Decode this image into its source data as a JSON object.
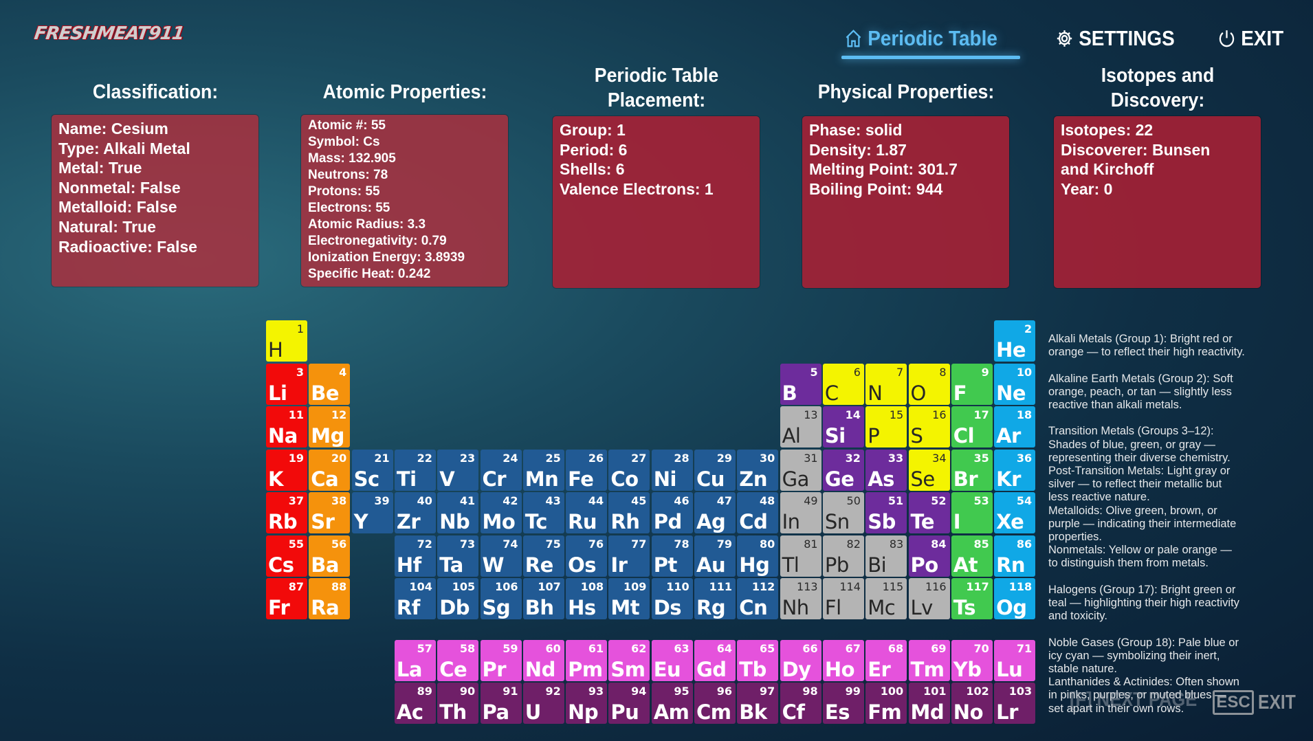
{
  "logo": {
    "text": "FRESHMEAT911"
  },
  "nav": {
    "items": [
      {
        "label": "Periodic Table",
        "icon": "home-icon",
        "active": true
      },
      {
        "label": "SETTINGS",
        "icon": "gear-icon"
      },
      {
        "label": "EXIT",
        "icon": "power-icon"
      }
    ],
    "accent": "#5cbcf2"
  },
  "panels": [
    {
      "title": "Classification:",
      "lines": [
        "Name: Cesium",
        "Type: Alkali Metal",
        "Metal: True",
        "Nonmetal: False",
        "Metalloid: False",
        "Natural: True",
        "Radioactive: False"
      ]
    },
    {
      "title": "Atomic Properties:",
      "lines": [
        "Atomic #: 55",
        "Symbol: Cs",
        "Mass: 132.905",
        "Neutrons: 78",
        "Protons: 55",
        "Electrons: 55",
        "Atomic Radius: 3.3",
        "Electronegativity: 0.79",
        "Ionization Energy: 3.8939",
        "Specific Heat: 0.242"
      ]
    },
    {
      "title": "Periodic Table\nPlacement:",
      "lines": [
        "Group: 1",
        "Period: 6",
        "Shells: 6",
        "Valence Electrons: 1"
      ]
    },
    {
      "title": "Physical Properties:",
      "lines": [
        "Phase: solid",
        "Density: 1.87",
        "Melting Point: 301.7",
        "Boiling Point: 944"
      ]
    },
    {
      "title": "Isotopes and\nDiscovery:",
      "lines": [
        "Isotopes: 22",
        "Discoverer: Bunsen",
        "and Kirchoff",
        "Year: 0"
      ]
    }
  ],
  "category_colors": {
    "alkali": "#f20a0a",
    "alkaline": "#f5920c",
    "transition": "#215a94",
    "post": "#b4b4b4",
    "metalloid": "#6d2c9c",
    "nonmetal": "#f4f400",
    "halogen": "#41c94f",
    "noble": "#10a8e6",
    "lanthanide": "#e552dc",
    "actinide": "#6f1f68"
  },
  "elements": [
    {
      "n": 1,
      "s": "H",
      "c": "nonmetal"
    },
    {
      "n": 2,
      "s": "He",
      "c": "noble"
    },
    {
      "n": 3,
      "s": "Li",
      "c": "alkali"
    },
    {
      "n": 4,
      "s": "Be",
      "c": "alkaline"
    },
    {
      "n": 5,
      "s": "B",
      "c": "metalloid"
    },
    {
      "n": 6,
      "s": "C",
      "c": "nonmetal"
    },
    {
      "n": 7,
      "s": "N",
      "c": "nonmetal"
    },
    {
      "n": 8,
      "s": "O",
      "c": "nonmetal"
    },
    {
      "n": 9,
      "s": "F",
      "c": "halogen"
    },
    {
      "n": 10,
      "s": "Ne",
      "c": "noble"
    },
    {
      "n": 11,
      "s": "Na",
      "c": "alkali"
    },
    {
      "n": 12,
      "s": "Mg",
      "c": "alkaline"
    },
    {
      "n": 13,
      "s": "Al",
      "c": "post"
    },
    {
      "n": 14,
      "s": "Si",
      "c": "metalloid"
    },
    {
      "n": 15,
      "s": "P",
      "c": "nonmetal"
    },
    {
      "n": 16,
      "s": "S",
      "c": "nonmetal"
    },
    {
      "n": 17,
      "s": "Cl",
      "c": "halogen"
    },
    {
      "n": 18,
      "s": "Ar",
      "c": "noble"
    },
    {
      "n": 19,
      "s": "K",
      "c": "alkali"
    },
    {
      "n": 20,
      "s": "Ca",
      "c": "alkaline"
    },
    {
      "n": 21,
      "s": "Sc",
      "c": "transition"
    },
    {
      "n": 22,
      "s": "Ti",
      "c": "transition"
    },
    {
      "n": 23,
      "s": "V",
      "c": "transition"
    },
    {
      "n": 24,
      "s": "Cr",
      "c": "transition"
    },
    {
      "n": 25,
      "s": "Mn",
      "c": "transition"
    },
    {
      "n": 26,
      "s": "Fe",
      "c": "transition"
    },
    {
      "n": 27,
      "s": "Co",
      "c": "transition"
    },
    {
      "n": 28,
      "s": "Ni",
      "c": "transition"
    },
    {
      "n": 29,
      "s": "Cu",
      "c": "transition"
    },
    {
      "n": 30,
      "s": "Zn",
      "c": "transition"
    },
    {
      "n": 31,
      "s": "Ga",
      "c": "post"
    },
    {
      "n": 32,
      "s": "Ge",
      "c": "metalloid"
    },
    {
      "n": 33,
      "s": "As",
      "c": "metalloid"
    },
    {
      "n": 34,
      "s": "Se",
      "c": "nonmetal"
    },
    {
      "n": 35,
      "s": "Br",
      "c": "halogen"
    },
    {
      "n": 36,
      "s": "Kr",
      "c": "noble"
    },
    {
      "n": 37,
      "s": "Rb",
      "c": "alkali"
    },
    {
      "n": 38,
      "s": "Sr",
      "c": "alkaline"
    },
    {
      "n": 39,
      "s": "Y",
      "c": "transition"
    },
    {
      "n": 40,
      "s": "Zr",
      "c": "transition"
    },
    {
      "n": 41,
      "s": "Nb",
      "c": "transition"
    },
    {
      "n": 42,
      "s": "Mo",
      "c": "transition"
    },
    {
      "n": 43,
      "s": "Tc",
      "c": "transition"
    },
    {
      "n": 44,
      "s": "Ru",
      "c": "transition"
    },
    {
      "n": 45,
      "s": "Rh",
      "c": "transition"
    },
    {
      "n": 46,
      "s": "Pd",
      "c": "transition"
    },
    {
      "n": 47,
      "s": "Ag",
      "c": "transition"
    },
    {
      "n": 48,
      "s": "Cd",
      "c": "transition"
    },
    {
      "n": 49,
      "s": "In",
      "c": "post"
    },
    {
      "n": 50,
      "s": "Sn",
      "c": "post"
    },
    {
      "n": 51,
      "s": "Sb",
      "c": "metalloid"
    },
    {
      "n": 52,
      "s": "Te",
      "c": "metalloid"
    },
    {
      "n": 53,
      "s": "I",
      "c": "halogen"
    },
    {
      "n": 54,
      "s": "Xe",
      "c": "noble"
    },
    {
      "n": 55,
      "s": "Cs",
      "c": "alkali"
    },
    {
      "n": 56,
      "s": "Ba",
      "c": "alkaline"
    },
    {
      "n": 57,
      "s": "La",
      "c": "lanthanide"
    },
    {
      "n": 58,
      "s": "Ce",
      "c": "lanthanide"
    },
    {
      "n": 59,
      "s": "Pr",
      "c": "lanthanide"
    },
    {
      "n": 60,
      "s": "Nd",
      "c": "lanthanide"
    },
    {
      "n": 61,
      "s": "Pm",
      "c": "lanthanide"
    },
    {
      "n": 62,
      "s": "Sm",
      "c": "lanthanide"
    },
    {
      "n": 63,
      "s": "Eu",
      "c": "lanthanide"
    },
    {
      "n": 64,
      "s": "Gd",
      "c": "lanthanide"
    },
    {
      "n": 65,
      "s": "Tb",
      "c": "lanthanide"
    },
    {
      "n": 66,
      "s": "Dy",
      "c": "lanthanide"
    },
    {
      "n": 67,
      "s": "Ho",
      "c": "lanthanide"
    },
    {
      "n": 68,
      "s": "Er",
      "c": "lanthanide"
    },
    {
      "n": 69,
      "s": "Tm",
      "c": "lanthanide"
    },
    {
      "n": 70,
      "s": "Yb",
      "c": "lanthanide"
    },
    {
      "n": 71,
      "s": "Lu",
      "c": "lanthanide"
    },
    {
      "n": 72,
      "s": "Hf",
      "c": "transition"
    },
    {
      "n": 73,
      "s": "Ta",
      "c": "transition"
    },
    {
      "n": 74,
      "s": "W",
      "c": "transition"
    },
    {
      "n": 75,
      "s": "Re",
      "c": "transition"
    },
    {
      "n": 76,
      "s": "Os",
      "c": "transition"
    },
    {
      "n": 77,
      "s": "Ir",
      "c": "transition"
    },
    {
      "n": 78,
      "s": "Pt",
      "c": "transition"
    },
    {
      "n": 79,
      "s": "Au",
      "c": "transition"
    },
    {
      "n": 80,
      "s": "Hg",
      "c": "transition"
    },
    {
      "n": 81,
      "s": "Tl",
      "c": "post"
    },
    {
      "n": 82,
      "s": "Pb",
      "c": "post"
    },
    {
      "n": 83,
      "s": "Bi",
      "c": "post"
    },
    {
      "n": 84,
      "s": "Po",
      "c": "metalloid"
    },
    {
      "n": 85,
      "s": "At",
      "c": "halogen"
    },
    {
      "n": 86,
      "s": "Rn",
      "c": "noble"
    },
    {
      "n": 87,
      "s": "Fr",
      "c": "alkali"
    },
    {
      "n": 88,
      "s": "Ra",
      "c": "alkaline"
    },
    {
      "n": 89,
      "s": "Ac",
      "c": "actinide"
    },
    {
      "n": 90,
      "s": "Th",
      "c": "actinide"
    },
    {
      "n": 91,
      "s": "Pa",
      "c": "actinide"
    },
    {
      "n": 92,
      "s": "U",
      "c": "actinide"
    },
    {
      "n": 93,
      "s": "Np",
      "c": "actinide"
    },
    {
      "n": 94,
      "s": "Pu",
      "c": "actinide"
    },
    {
      "n": 95,
      "s": "Am",
      "c": "actinide"
    },
    {
      "n": 96,
      "s": "Cm",
      "c": "actinide"
    },
    {
      "n": 97,
      "s": "Bk",
      "c": "actinide"
    },
    {
      "n": 98,
      "s": "Cf",
      "c": "actinide"
    },
    {
      "n": 99,
      "s": "Es",
      "c": "actinide"
    },
    {
      "n": 100,
      "s": "Fm",
      "c": "actinide"
    },
    {
      "n": 101,
      "s": "Md",
      "c": "actinide"
    },
    {
      "n": 102,
      "s": "No",
      "c": "actinide"
    },
    {
      "n": 103,
      "s": "Lr",
      "c": "actinide"
    },
    {
      "n": 104,
      "s": "Rf",
      "c": "transition"
    },
    {
      "n": 105,
      "s": "Db",
      "c": "transition"
    },
    {
      "n": 106,
      "s": "Sg",
      "c": "transition"
    },
    {
      "n": 107,
      "s": "Bh",
      "c": "transition"
    },
    {
      "n": 108,
      "s": "Hs",
      "c": "transition"
    },
    {
      "n": 109,
      "s": "Mt",
      "c": "transition"
    },
    {
      "n": 110,
      "s": "Ds",
      "c": "transition"
    },
    {
      "n": 111,
      "s": "Rg",
      "c": "transition"
    },
    {
      "n": 112,
      "s": "Cn",
      "c": "transition"
    },
    {
      "n": 113,
      "s": "Nh",
      "c": "post"
    },
    {
      "n": 114,
      "s": "Fl",
      "c": "post"
    },
    {
      "n": 115,
      "s": "Mc",
      "c": "post"
    },
    {
      "n": 116,
      "s": "Lv",
      "c": "post"
    },
    {
      "n": 117,
      "s": "Ts",
      "c": "halogen"
    },
    {
      "n": 118,
      "s": "Og",
      "c": "noble"
    }
  ],
  "legend": {
    "groups": [
      [
        "Alkali Metals (Group 1): Bright red or\norange — to reflect their high reactivity."
      ],
      [
        "Alkaline Earth Metals (Group 2): Soft\norange, peach, or tan — slightly less\nreactive than alkali metals."
      ],
      [
        "Transition Metals (Groups 3–12):\nShades of blue, green, or gray —\nrepresenting their diverse chemistry.",
        "Post-Transition Metals: Light gray or\nsilver — to reflect their metallic but\nless reactive nature.",
        "Metalloids: Olive green, brown, or\npurple — indicating their intermediate\nproperties.",
        "Nonmetals: Yellow or pale orange —\nto distinguish them from metals."
      ],
      [
        "Halogens (Group 17): Bright green or\nteal — highlighting their high reactivity\nand toxicity."
      ],
      [
        "Noble Gases (Group 18): Pale blue or\nicy cyan — symbolizing their inert,\nstable nature.",
        "Lanthanides & Actinides: Often shown\nin pinks, purples, or muted blues —\nset apart in their own rows."
      ]
    ]
  },
  "hints": {
    "next_page": "[F] NEXT PAGE",
    "esc_key": "ESC",
    "exit": "EXIT"
  }
}
